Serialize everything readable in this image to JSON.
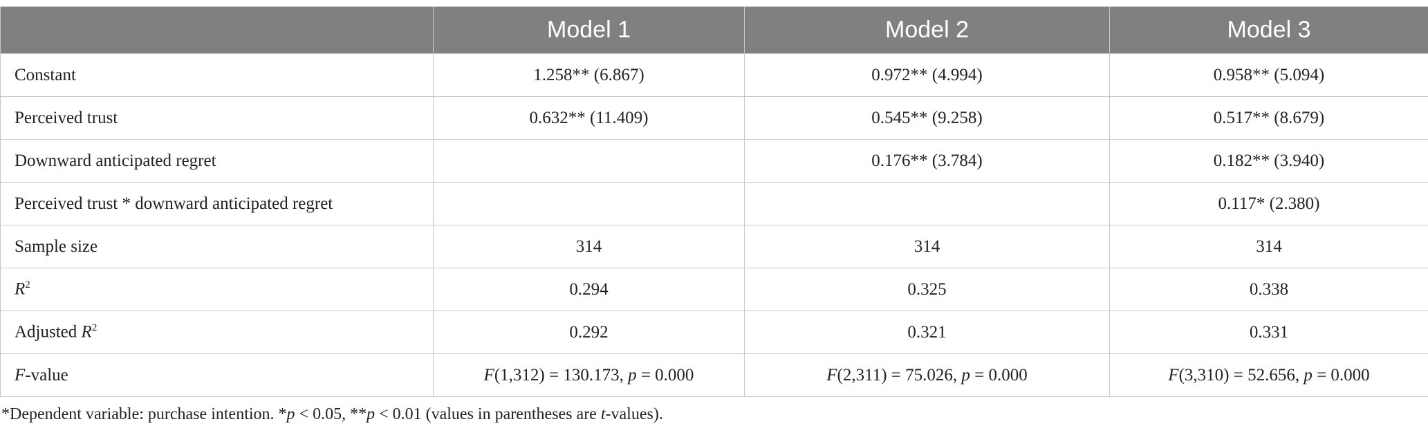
{
  "table": {
    "header": [
      null,
      "Model 1",
      "Model 2",
      "Model 3"
    ],
    "rows": [
      [
        "Constant",
        "1.258** (6.867)",
        "0.972** (4.994)",
        "0.958** (5.094)"
      ],
      [
        "Perceived trust",
        "0.632** (11.409)",
        "0.545** (9.258)",
        "0.517** (8.679)"
      ],
      [
        "Downward anticipated regret",
        null,
        "0.176** (3.784)",
        "0.182** (3.940)"
      ],
      [
        "Perceived trust * downward anticipated regret",
        null,
        null,
        "0.117* (2.380)"
      ],
      [
        "Sample size",
        "314",
        "314",
        "314"
      ],
      [
        [
          {
            "text": "R",
            "italic": true
          },
          {
            "text": "2",
            "sup": true
          }
        ],
        "0.294",
        "0.325",
        "0.338"
      ],
      [
        [
          {
            "text": "Adjusted "
          },
          {
            "text": "R",
            "italic": true
          },
          {
            "text": "2",
            "sup": true
          }
        ],
        "0.292",
        "0.321",
        "0.331"
      ],
      [
        [
          {
            "text": "F",
            "italic": true
          },
          {
            "text": "-value"
          }
        ],
        [
          {
            "text": "F",
            "italic": true
          },
          {
            "text": "(1,312) = 130.173, "
          },
          {
            "text": "p",
            "italic": true
          },
          {
            "text": " = 0.000"
          }
        ],
        [
          {
            "text": "F",
            "italic": true
          },
          {
            "text": "(2,311) = 75.026, "
          },
          {
            "text": "p",
            "italic": true
          },
          {
            "text": " = 0.000"
          }
        ],
        [
          {
            "text": "F",
            "italic": true
          },
          {
            "text": "(3,310) = 52.656, "
          },
          {
            "text": "p",
            "italic": true
          },
          {
            "text": " = 0.000"
          }
        ]
      ]
    ],
    "note": [
      {
        "text": "*Dependent variable: purchase intention. *"
      },
      {
        "text": "p",
        "italic": true
      },
      {
        "text": " < 0.05, **"
      },
      {
        "text": "p",
        "italic": true
      },
      {
        "text": " < 0.01 (values in parentheses are "
      },
      {
        "text": "t",
        "italic": true
      },
      {
        "text": "-values)."
      }
    ]
  }
}
